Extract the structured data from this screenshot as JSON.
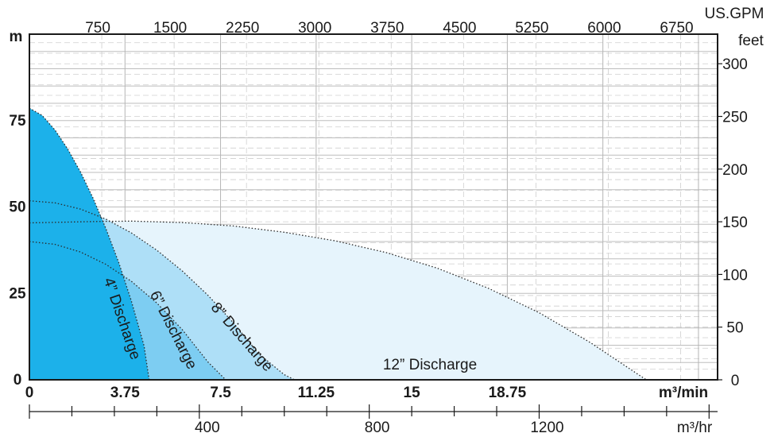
{
  "chart_data": {
    "type": "area",
    "title": "",
    "axes": {
      "left": {
        "label": "m",
        "range": [
          0,
          100
        ],
        "ticks": [
          "0",
          "25",
          "50",
          "75"
        ]
      },
      "right": {
        "label": "feet",
        "range": [
          0,
          328.08
        ],
        "ticks": [
          "0",
          "50",
          "100",
          "150",
          "200",
          "250",
          "300"
        ]
      },
      "top": {
        "label": "US.GPM",
        "range": [
          0,
          7133
        ],
        "ticks": [
          "750",
          "1500",
          "2250",
          "3000",
          "3750",
          "4500",
          "5250",
          "6000",
          "6750"
        ]
      },
      "bottom": {
        "label": "m³/min",
        "range": [
          0,
          27
        ],
        "ticks": [
          "0",
          "3.75",
          "7.5",
          "11.25",
          "15",
          "18.75"
        ]
      },
      "bottom2": {
        "label": "m³/hr",
        "range": [
          0,
          1620
        ],
        "ticks": [
          "400",
          "800",
          "1200"
        ]
      }
    },
    "grid": true,
    "series": [
      {
        "name": "12” Discharge",
        "color": "#e6f4fc",
        "x": [
          0,
          2.6,
          4,
          6,
          8,
          10,
          12,
          14,
          16,
          18,
          20,
          22,
          24.2
        ],
        "y": [
          45.4,
          45.8,
          45.9,
          45.5,
          44.5,
          42.7,
          40.2,
          36.8,
          32.3,
          26.5,
          19.4,
          10.8,
          0
        ]
      },
      {
        "name": "8” Discharge",
        "color": "#aedff7",
        "x": [
          0,
          1,
          2,
          3,
          4,
          5,
          6,
          7,
          8,
          9,
          10,
          10.4
        ],
        "y": [
          51.8,
          51.2,
          49.4,
          46.5,
          42.5,
          37.5,
          31.5,
          24.5,
          16.5,
          7.5,
          1.5,
          0
        ]
      },
      {
        "name": "6” Discharge",
        "color": "#7dcdf2",
        "x": [
          0,
          1,
          2,
          3,
          4,
          5,
          6,
          7,
          7.7
        ],
        "y": [
          40,
          39.2,
          37,
          33.4,
          28.5,
          22.2,
          14.5,
          5.2,
          0
        ]
      },
      {
        "name": "4” Discharge",
        "color": "#1cb1ea",
        "x": [
          0,
          0.5,
          1,
          1.5,
          2,
          2.5,
          3,
          3.5,
          4,
          4.5,
          4.7
        ],
        "y": [
          78.6,
          76.5,
          72.3,
          66.8,
          60.2,
          52.5,
          43.8,
          34,
          22.8,
          9.8,
          0
        ]
      }
    ]
  }
}
